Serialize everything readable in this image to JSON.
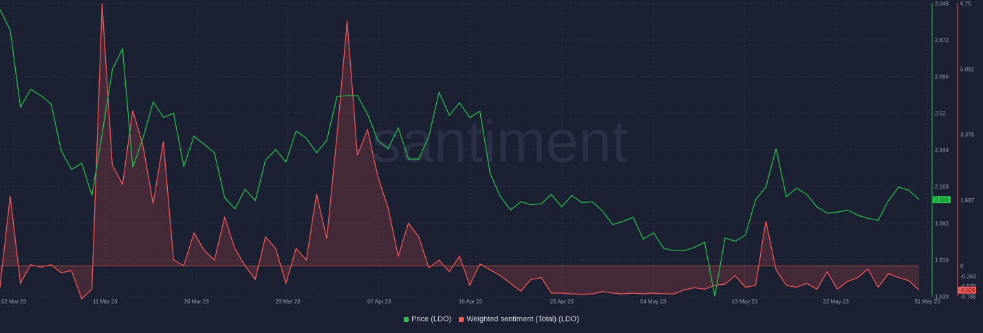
{
  "watermark": "santiment",
  "legend": [
    {
      "label": "Price (LDO)",
      "color": "#26c94e"
    },
    {
      "label": "Weighted sentiment (Total) (LDO)",
      "color": "#ff5b5b"
    }
  ],
  "chart_data": {
    "type": "line",
    "x_ticks": [
      "02 Mar 23",
      "11 Mar 23",
      "20 Mar 23",
      "29 Mar 23",
      "07 Apr 23",
      "16 Apr 23",
      "25 Apr 23",
      "04 May 23",
      "13 May 23",
      "22 May 23",
      "31 May 23"
    ],
    "y_left_ticks": [
      "3.048",
      "2.872",
      "2.696",
      "2.52",
      "2.344",
      "2.168",
      "1.992",
      "1.816",
      "1.639"
    ],
    "y_left_range": [
      1.639,
      3.048
    ],
    "y_right_ticks": [
      "6.75",
      "5.062",
      "3.375",
      "1.687",
      "0",
      "-0.263",
      "-0.526",
      "-0.788"
    ],
    "y_right_range": [
      -0.788,
      6.75
    ],
    "price_last": "2.105",
    "sentiment_last": "-0.624",
    "series": [
      {
        "name": "Price (LDO)",
        "color": "#26c94e",
        "axis": "left",
        "values": [
          3.018,
          2.92,
          2.55,
          2.635,
          2.605,
          2.565,
          2.34,
          2.25,
          2.28,
          2.125,
          2.42,
          2.73,
          2.83,
          2.26,
          2.4,
          2.575,
          2.5,
          2.52,
          2.265,
          2.41,
          2.37,
          2.33,
          2.115,
          2.06,
          2.155,
          2.1,
          2.295,
          2.345,
          2.285,
          2.435,
          2.4,
          2.33,
          2.39,
          2.6,
          2.605,
          2.605,
          2.515,
          2.39,
          2.35,
          2.45,
          2.3,
          2.3,
          2.41,
          2.62,
          2.51,
          2.57,
          2.5,
          2.53,
          2.23,
          2.12,
          2.055,
          2.095,
          2.08,
          2.085,
          2.13,
          2.07,
          2.125,
          2.09,
          2.095,
          2.05,
          1.985,
          2.0,
          2.02,
          1.915,
          1.945,
          1.87,
          1.86,
          1.86,
          1.875,
          1.9,
          1.64,
          1.92,
          1.905,
          1.935,
          2.105,
          2.165,
          2.35,
          2.12,
          2.16,
          2.13,
          2.07,
          2.04,
          2.045,
          2.055,
          2.03,
          2.015,
          2.005,
          2.1,
          2.165,
          2.15,
          2.105
        ]
      },
      {
        "name": "Weighted sentiment (Total) (LDO)",
        "color": "#ff5b5b",
        "axis": "right",
        "values": [
          -0.55,
          1.8,
          -0.45,
          0.03,
          -0.03,
          0.03,
          -0.18,
          -0.12,
          -0.85,
          -0.6,
          6.75,
          2.6,
          2.1,
          4.0,
          3.1,
          1.6,
          3.2,
          0.15,
          0.01,
          0.85,
          0.4,
          0.15,
          1.25,
          0.45,
          0.0,
          -0.35,
          0.75,
          0.45,
          -0.45,
          0.45,
          0.15,
          1.85,
          0.7,
          3.35,
          6.3,
          2.85,
          3.5,
          2.3,
          1.5,
          0.25,
          1.1,
          0.75,
          -0.05,
          0.15,
          -0.15,
          0.25,
          -0.5,
          0.05,
          -0.1,
          -0.25,
          -0.45,
          -0.65,
          -0.35,
          -0.3,
          -0.7,
          -0.7,
          -0.72,
          -0.73,
          -0.72,
          -0.66,
          -0.7,
          -0.72,
          -0.7,
          -0.72,
          -0.7,
          -0.72,
          -0.72,
          -0.62,
          -0.56,
          -0.6,
          -0.5,
          -0.47,
          -0.25,
          -0.55,
          -0.5,
          1.15,
          -0.1,
          -0.5,
          -0.55,
          -0.45,
          -0.6,
          -0.15,
          -0.6,
          -0.4,
          -0.3,
          -0.08,
          -0.55,
          -0.2,
          -0.3,
          -0.38,
          -0.62
        ]
      }
    ]
  }
}
